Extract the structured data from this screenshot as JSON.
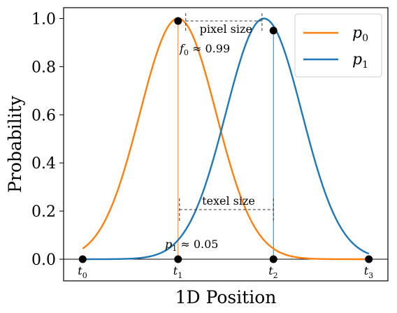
{
  "chart_data": {
    "type": "line",
    "title": "",
    "xlabel": "1D Position",
    "ylabel": "Probability",
    "xlim": [
      -0.2,
      3.2
    ],
    "ylim": [
      -0.09,
      1.045
    ],
    "grid": false,
    "legend_position": "top-right",
    "y_ticks": [
      {
        "value": 0.0,
        "label": "0.0"
      },
      {
        "value": 0.2,
        "label": "0.2"
      },
      {
        "value": 0.4,
        "label": "0.4"
      },
      {
        "value": 0.6,
        "label": "0.6"
      },
      {
        "value": 0.8,
        "label": "0.8"
      },
      {
        "value": 1.0,
        "label": "1.0"
      }
    ],
    "x_points": [
      {
        "value": 0,
        "label": "t",
        "sub": "0"
      },
      {
        "value": 1,
        "label": "t",
        "sub": "1"
      },
      {
        "value": 2,
        "label": "t",
        "sub": "2"
      },
      {
        "value": 3,
        "label": "t",
        "sub": "3"
      }
    ],
    "series": [
      {
        "name": "p",
        "sub": "0",
        "color": "#ff7f0e",
        "mean": 1.0,
        "sigma": 0.4
      },
      {
        "name": "p",
        "sub": "1",
        "color": "#1f77b4",
        "mean": 1.9,
        "sigma": 0.4
      }
    ],
    "markers": [
      {
        "x": 0,
        "y": 0.0
      },
      {
        "x": 1,
        "y": 0.99
      },
      {
        "x": 1,
        "y": 0.0
      },
      {
        "x": 2,
        "y": 0.95
      },
      {
        "x": 2,
        "y": 0.0
      },
      {
        "x": 3,
        "y": 0.0
      }
    ],
    "annotations": {
      "pixel_size": "pixel size",
      "texel_size": "texel size",
      "f0_name": "f",
      "f0_sub": "0",
      "f0_value": "≈ 0.99",
      "p1_name": "p",
      "p1_sub": "1",
      "p1_value": "≈ 0.05"
    }
  }
}
